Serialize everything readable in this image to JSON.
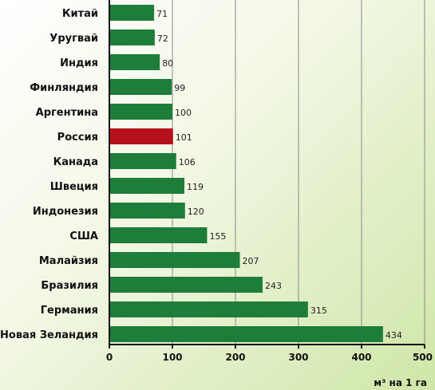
{
  "chart_data": {
    "type": "bar",
    "orientation": "horizontal",
    "title": "",
    "xlabel": "м³ на 1 га",
    "ylabel": "",
    "xlim": [
      0,
      500
    ],
    "xticks": [
      0,
      100,
      200,
      300,
      400,
      500
    ],
    "grid": true,
    "legend": "none",
    "categories": [
      "Китай",
      "Уругвай",
      "Индия",
      "Финляндия",
      "Аргентина",
      "Россия",
      "Канада",
      "Швеция",
      "Индонезия",
      "США",
      "Малайзия",
      "Бразилия",
      "Германия",
      "Новая Зеландия"
    ],
    "values": [
      71,
      72,
      80,
      99,
      100,
      101,
      106,
      119,
      120,
      155,
      207,
      243,
      315,
      434
    ],
    "value_labels": [
      "71",
      "72",
      "80",
      "99",
      "100",
      "101",
      "106",
      "119",
      "120",
      "155",
      "207",
      "243",
      "315",
      "434"
    ],
    "colors": {
      "bar": "#1e7d3a",
      "highlight": "#b5121b",
      "highlight_category": "Россия",
      "grid": "#8a8a8a",
      "axis": "#111111"
    }
  }
}
